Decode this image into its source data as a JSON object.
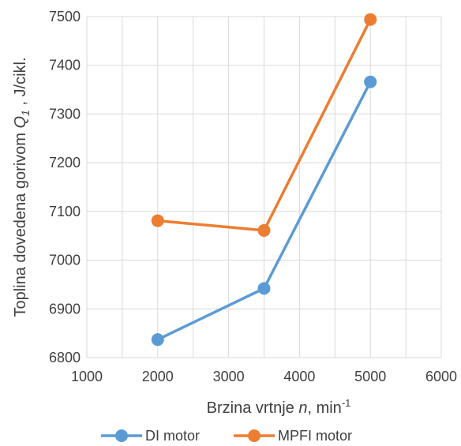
{
  "chart_data": {
    "type": "line",
    "title": "",
    "xlabel": {
      "prefix": "Brzina vrtnje ",
      "var": "n",
      "suffix": ", min",
      "sup": "-1"
    },
    "ylabel": {
      "prefix": "Toplina dovedena gorivom ",
      "var": "Q",
      "sub": "1",
      "suffix": " , J/cikl."
    },
    "xlim": [
      1000,
      6000
    ],
    "ylim": [
      6800,
      7500
    ],
    "xticks": [
      1000,
      2000,
      3000,
      4000,
      5000,
      6000
    ],
    "yticks": [
      6800,
      6900,
      7000,
      7100,
      7200,
      7300,
      7400,
      7500
    ],
    "grid": true,
    "legend_position": "bottom",
    "series": [
      {
        "name": "DI motor",
        "color": "#5b9bd5",
        "x": [
          2000,
          3500,
          5000
        ],
        "y": [
          6837,
          6942,
          7366
        ]
      },
      {
        "name": "MPFI motor",
        "color": "#ed7d31",
        "x": [
          2000,
          3500,
          5000
        ],
        "y": [
          7081,
          7061,
          7494
        ]
      }
    ]
  }
}
